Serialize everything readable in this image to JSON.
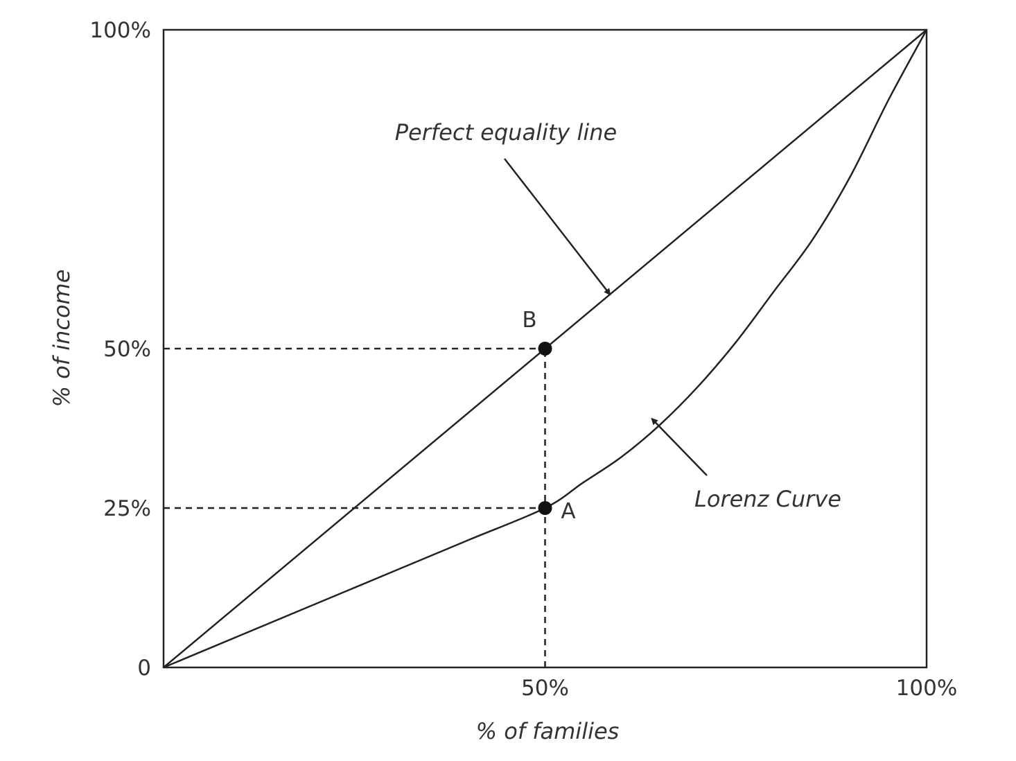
{
  "chart_data": {
    "type": "line",
    "xlabel": "% of families",
    "ylabel": "% of income",
    "xlim": [
      0,
      100
    ],
    "ylim": [
      0,
      100
    ],
    "x_ticks": [
      {
        "value": 50,
        "label": "50%"
      },
      {
        "value": 100,
        "label": "100%"
      }
    ],
    "y_ticks": [
      {
        "value": 0,
        "label": "0"
      },
      {
        "value": 25,
        "label": "25%"
      },
      {
        "value": 50,
        "label": "50%"
      },
      {
        "value": 100,
        "label": "100%"
      }
    ],
    "grid": false,
    "legend": "none",
    "series": [
      {
        "name": "Perfect equality line",
        "x": [
          0,
          100
        ],
        "y": [
          0,
          100
        ]
      },
      {
        "name": "Lorenz Curve",
        "x": [
          0,
          10,
          20,
          30,
          40,
          50,
          55,
          60,
          65,
          70,
          75,
          80,
          85,
          90,
          95,
          100
        ],
        "y": [
          0,
          5,
          10,
          15,
          20,
          25,
          29,
          33,
          38,
          44,
          51,
          59,
          67,
          77,
          89,
          100
        ]
      }
    ],
    "points": [
      {
        "label": "B",
        "x": 50,
        "y": 50
      },
      {
        "label": "A",
        "x": 50,
        "y": 25
      }
    ],
    "reference_lines": [
      {
        "from": [
          0,
          50
        ],
        "to": [
          50,
          50
        ],
        "style": "dashed"
      },
      {
        "from": [
          0,
          25
        ],
        "to": [
          50,
          25
        ],
        "style": "dashed"
      },
      {
        "from": [
          50,
          0
        ],
        "to": [
          50,
          50
        ],
        "style": "dashed"
      }
    ],
    "annotations": [
      {
        "text": "Perfect equality line",
        "italic": true,
        "arrow_to": [
          58.5,
          58.5
        ]
      },
      {
        "text": "Lorenz Curve",
        "italic": true,
        "arrow_to": [
          64,
          39
        ]
      }
    ],
    "colors": {
      "line": "#222222",
      "text": "#333333",
      "background": "#ffffff"
    }
  }
}
